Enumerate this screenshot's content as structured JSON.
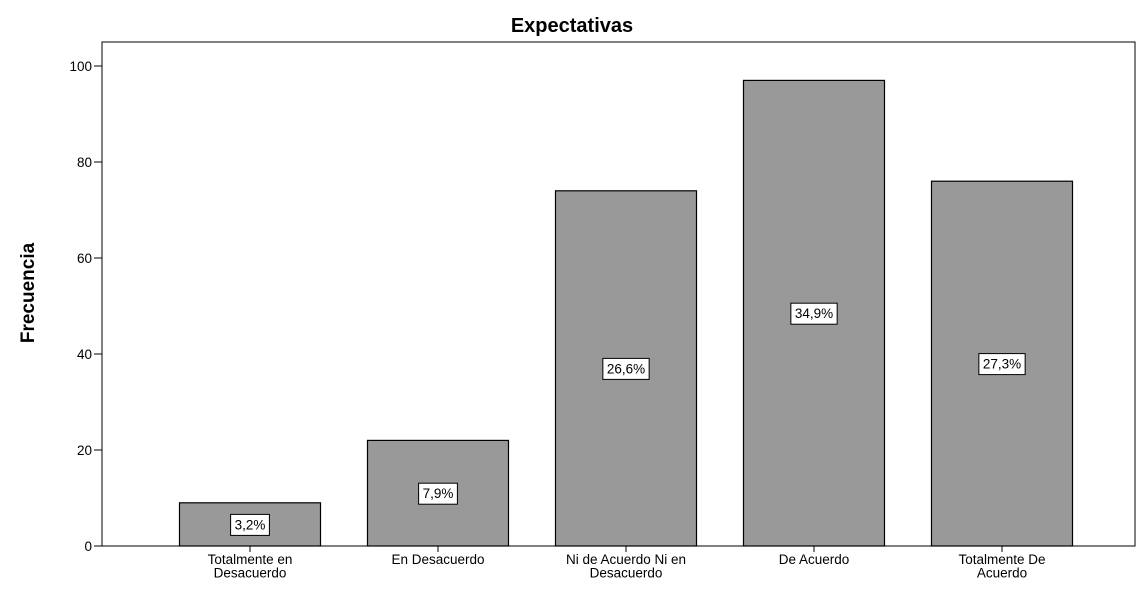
{
  "chart_data": {
    "type": "bar",
    "title": "Expectativas",
    "xlabel": "",
    "ylabel": "Frecuencia",
    "ylim": [
      0,
      105
    ],
    "yticks": [
      0,
      20,
      40,
      60,
      80,
      100
    ],
    "grid": false,
    "legend": "none",
    "categories": [
      [
        "Totalmente en",
        "Desacuerdo"
      ],
      [
        "En Desacuerdo"
      ],
      [
        "Ni de Acuerdo Ni en",
        "Desacuerdo"
      ],
      [
        "De Acuerdo"
      ],
      [
        "Totalmente De",
        "Acuerdo"
      ]
    ],
    "values": [
      9,
      22,
      74,
      97,
      76
    ],
    "data_labels": [
      "3,2%",
      "7,9%",
      "26,6%",
      "34,9%",
      "27,3%"
    ],
    "colors": {
      "bar_fill": "#999999",
      "bar_stroke": "#000000",
      "axis": "#000000",
      "label_box_fill": "#ffffff"
    }
  }
}
